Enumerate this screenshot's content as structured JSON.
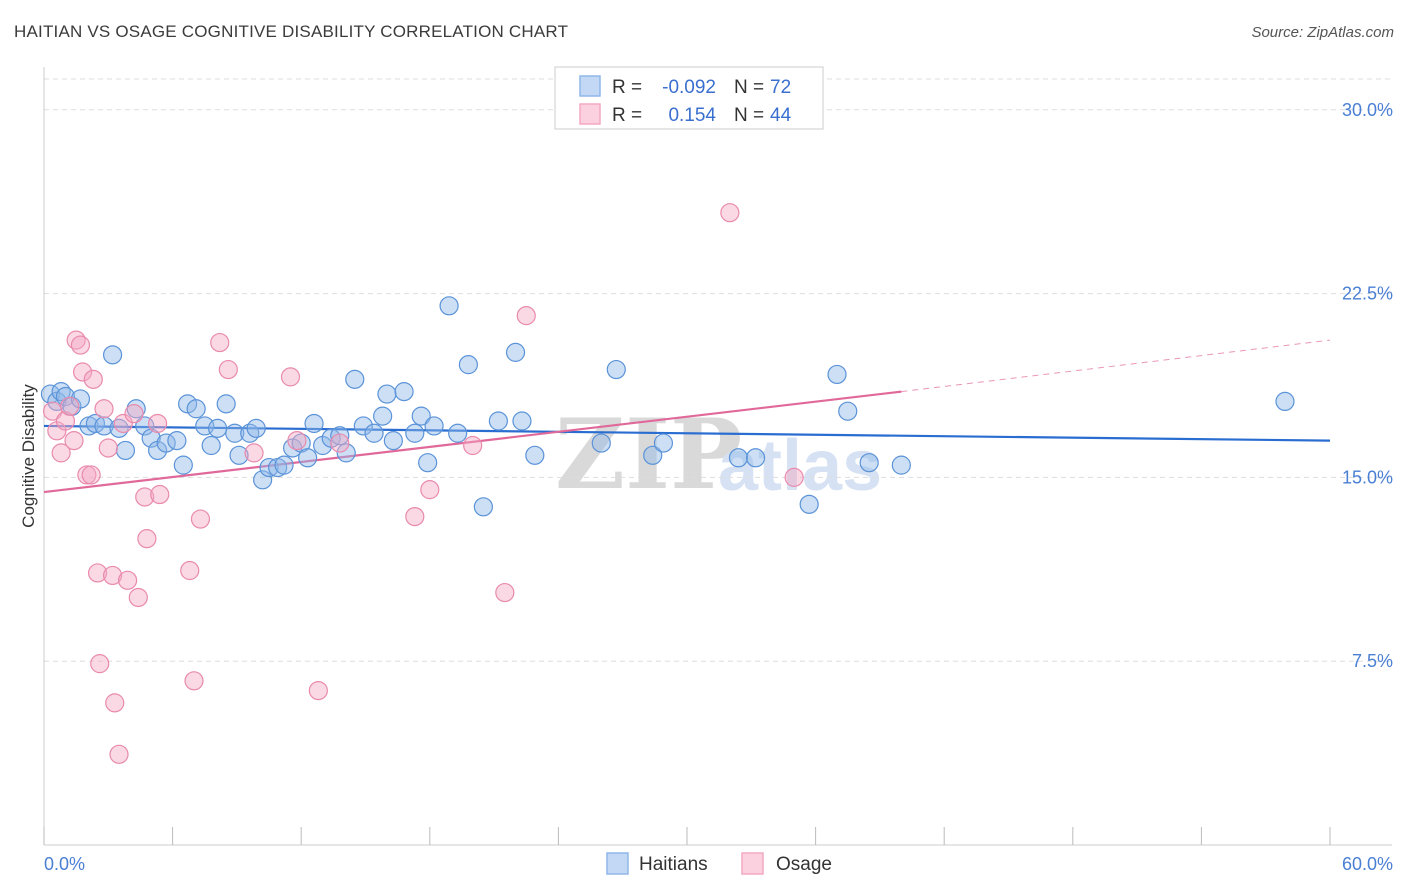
{
  "chart_data": {
    "type": "scatter",
    "title": "HAITIAN VS OSAGE COGNITIVE DISABILITY CORRELATION CHART",
    "source": "Source: ZipAtlas.com",
    "xlabel": "",
    "ylabel": "Cognitive Disability",
    "xlim": [
      0,
      60
    ],
    "ylim": [
      0,
      31.5
    ],
    "x_tick_labels": [
      "0.0%",
      "60.0%"
    ],
    "y_ticks": [
      7.5,
      15.0,
      22.5,
      30.0
    ],
    "y_tick_labels": [
      "7.5%",
      "15.0%",
      "22.5%",
      "30.0%"
    ],
    "grid": true,
    "watermark": {
      "zip": "ZIP",
      "atlas": "atlas"
    },
    "legend": {
      "r_label": "R =",
      "n_label": "N =",
      "entries": [
        {
          "name": "Haitians",
          "r": "-0.092",
          "n": "72",
          "color": "#8fb7e8"
        },
        {
          "name": "Osage",
          "r": "0.154",
          "n": "44",
          "color": "#f4a9c4"
        }
      ]
    },
    "series": [
      {
        "name": "Haitians",
        "color": "#8fb7e8",
        "stroke": "#5b93d8",
        "trend_color": "#2a6dd1",
        "trend": {
          "x": [
            0,
            60
          ],
          "y": [
            17.1,
            16.5
          ]
        },
        "points": [
          [
            0.3,
            18.4
          ],
          [
            0.6,
            18.1
          ],
          [
            0.8,
            18.5
          ],
          [
            1.0,
            18.3
          ],
          [
            1.3,
            17.9
          ],
          [
            1.7,
            18.2
          ],
          [
            2.1,
            17.1
          ],
          [
            2.4,
            17.2
          ],
          [
            2.8,
            17.1
          ],
          [
            3.2,
            20.0
          ],
          [
            3.5,
            17.0
          ],
          [
            3.8,
            16.1
          ],
          [
            4.3,
            17.8
          ],
          [
            4.7,
            17.1
          ],
          [
            5.0,
            16.6
          ],
          [
            5.3,
            16.1
          ],
          [
            5.7,
            16.4
          ],
          [
            6.2,
            16.5
          ],
          [
            6.5,
            15.5
          ],
          [
            6.7,
            18.0
          ],
          [
            7.1,
            17.8
          ],
          [
            7.5,
            17.1
          ],
          [
            7.8,
            16.3
          ],
          [
            8.1,
            17.0
          ],
          [
            8.5,
            18.0
          ],
          [
            8.9,
            16.8
          ],
          [
            9.1,
            15.9
          ],
          [
            9.6,
            16.8
          ],
          [
            9.9,
            17.0
          ],
          [
            10.2,
            14.9
          ],
          [
            10.5,
            15.4
          ],
          [
            10.9,
            15.4
          ],
          [
            11.2,
            15.5
          ],
          [
            11.6,
            16.2
          ],
          [
            12.0,
            16.4
          ],
          [
            12.3,
            15.8
          ],
          [
            12.6,
            17.2
          ],
          [
            13.0,
            16.3
          ],
          [
            13.4,
            16.6
          ],
          [
            13.8,
            16.7
          ],
          [
            14.1,
            16.0
          ],
          [
            14.5,
            19.0
          ],
          [
            14.9,
            17.1
          ],
          [
            15.4,
            16.8
          ],
          [
            15.8,
            17.5
          ],
          [
            16.0,
            18.4
          ],
          [
            16.3,
            16.5
          ],
          [
            16.8,
            18.5
          ],
          [
            17.3,
            16.8
          ],
          [
            17.6,
            17.5
          ],
          [
            17.9,
            15.6
          ],
          [
            18.2,
            17.1
          ],
          [
            18.9,
            22.0
          ],
          [
            19.3,
            16.8
          ],
          [
            19.8,
            19.6
          ],
          [
            20.5,
            13.8
          ],
          [
            21.2,
            17.3
          ],
          [
            22.0,
            20.1
          ],
          [
            22.3,
            17.3
          ],
          [
            22.9,
            15.9
          ],
          [
            26.0,
            16.4
          ],
          [
            26.7,
            19.4
          ],
          [
            28.4,
            15.9
          ],
          [
            28.9,
            16.4
          ],
          [
            32.4,
            15.8
          ],
          [
            33.2,
            15.8
          ],
          [
            35.7,
            13.9
          ],
          [
            37.0,
            19.2
          ],
          [
            37.5,
            17.7
          ],
          [
            38.5,
            15.6
          ],
          [
            40.0,
            15.5
          ],
          [
            57.9,
            18.1
          ]
        ]
      },
      {
        "name": "Osage",
        "color": "#f4a9c4",
        "stroke": "#e98aad",
        "trend_color": "#e0699a",
        "trend": {
          "x": [
            0,
            40
          ],
          "y": [
            14.4,
            18.5
          ]
        },
        "trend_ext": {
          "x": [
            40,
            60
          ],
          "y": [
            18.5,
            20.6
          ]
        },
        "points": [
          [
            0.4,
            17.7
          ],
          [
            0.6,
            16.9
          ],
          [
            0.8,
            16.0
          ],
          [
            1.0,
            17.3
          ],
          [
            1.2,
            17.9
          ],
          [
            1.4,
            16.5
          ],
          [
            1.5,
            20.6
          ],
          [
            1.7,
            20.4
          ],
          [
            1.8,
            19.3
          ],
          [
            2.0,
            15.1
          ],
          [
            2.2,
            15.1
          ],
          [
            2.3,
            19.0
          ],
          [
            2.5,
            11.1
          ],
          [
            2.6,
            7.4
          ],
          [
            2.8,
            17.8
          ],
          [
            3.0,
            16.2
          ],
          [
            3.2,
            11.0
          ],
          [
            3.3,
            5.8
          ],
          [
            3.5,
            3.7
          ],
          [
            3.7,
            17.2
          ],
          [
            3.9,
            10.8
          ],
          [
            4.2,
            17.6
          ],
          [
            4.4,
            10.1
          ],
          [
            4.7,
            14.2
          ],
          [
            4.8,
            12.5
          ],
          [
            5.3,
            17.2
          ],
          [
            5.4,
            14.3
          ],
          [
            6.8,
            11.2
          ],
          [
            7.0,
            6.7
          ],
          [
            7.3,
            13.3
          ],
          [
            8.2,
            20.5
          ],
          [
            8.6,
            19.4
          ],
          [
            9.8,
            16.0
          ],
          [
            11.5,
            19.1
          ],
          [
            11.8,
            16.5
          ],
          [
            12.8,
            6.3
          ],
          [
            13.8,
            16.4
          ],
          [
            17.3,
            13.4
          ],
          [
            18.0,
            14.5
          ],
          [
            20.0,
            16.3
          ],
          [
            21.5,
            10.3
          ],
          [
            22.5,
            21.6
          ],
          [
            32.0,
            25.8
          ],
          [
            35.0,
            15.0
          ]
        ]
      }
    ]
  }
}
